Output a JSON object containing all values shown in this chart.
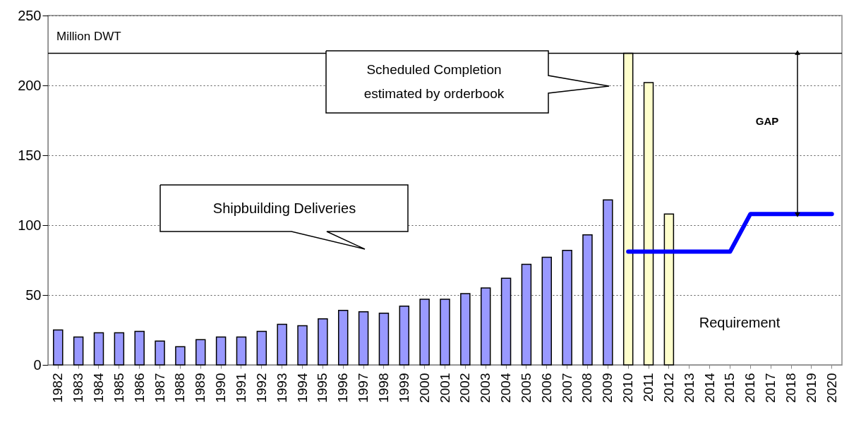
{
  "chart_data": {
    "type": "bar",
    "ylabel": "Million DWT",
    "categories": [
      "1982",
      "1983",
      "1984",
      "1985",
      "1986",
      "1987",
      "1988",
      "1989",
      "1990",
      "1991",
      "1992",
      "1993",
      "1994",
      "1995",
      "1996",
      "1997",
      "1998",
      "1999",
      "2000",
      "2001",
      "2002",
      "2003",
      "2004",
      "2005",
      "2006",
      "2007",
      "2008",
      "2009",
      "2010",
      "2011",
      "2012",
      "2013",
      "2014",
      "2015",
      "2016",
      "2017",
      "2018",
      "2019",
      "2020"
    ],
    "series": [
      {
        "color": "#9999ff",
        "values": [
          25,
          20,
          23,
          23,
          24,
          17,
          13,
          18,
          20,
          20,
          24,
          29,
          28,
          33,
          39,
          38,
          37,
          42,
          47,
          47,
          51,
          55,
          62,
          72,
          77,
          82,
          93,
          118,
          null,
          null,
          null,
          null,
          null,
          null,
          null,
          null,
          null,
          null,
          null
        ]
      },
      {
        "color": "#ffffcc",
        "values": [
          null,
          null,
          null,
          null,
          null,
          null,
          null,
          null,
          null,
          null,
          null,
          null,
          null,
          null,
          null,
          null,
          null,
          null,
          null,
          null,
          null,
          null,
          null,
          null,
          null,
          null,
          null,
          null,
          223,
          202,
          108,
          null,
          null,
          null,
          null,
          null,
          null,
          null,
          null
        ]
      },
      {
        "type": "line",
        "color": "#0000ff",
        "values": [
          null,
          null,
          null,
          null,
          null,
          null,
          null,
          null,
          null,
          null,
          null,
          null,
          null,
          null,
          null,
          null,
          null,
          null,
          null,
          null,
          null,
          null,
          null,
          null,
          null,
          null,
          null,
          null,
          81,
          81,
          81,
          81,
          81,
          81,
          108,
          108,
          108,
          108,
          108
        ]
      }
    ],
    "ylim": [
      0,
      250
    ],
    "yticks": [
      0,
      50,
      100,
      150,
      200,
      250
    ],
    "grid": "y",
    "ref_lines": [
      {
        "axis": "y",
        "value": 223,
        "label": null,
        "color": "#000000"
      }
    ],
    "annotations": [
      "Scheduled Completion\nestimated by orderbook",
      "Shipbuilding Deliveries",
      "Requirement",
      "GAP"
    ]
  }
}
